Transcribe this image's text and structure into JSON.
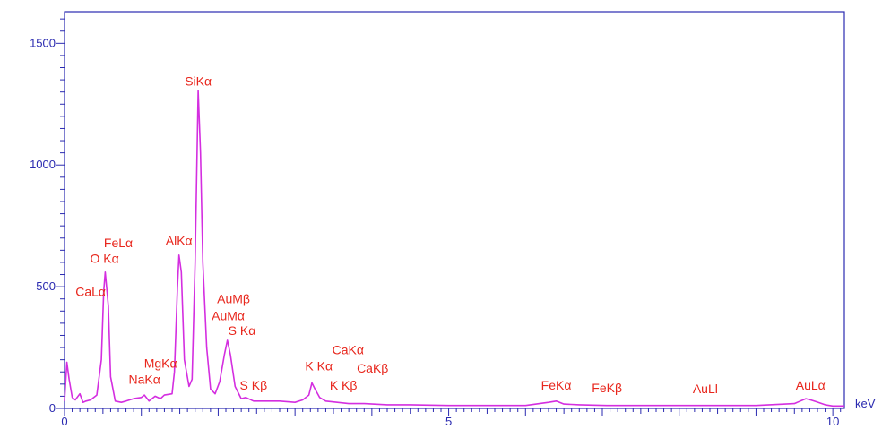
{
  "chart_data": {
    "type": "line",
    "title": "",
    "xlabel": "",
    "ylabel": "",
    "x_unit": "keV",
    "xlim": [
      0,
      10.15
    ],
    "ylim": [
      0,
      1630
    ],
    "x_ticks": [
      0,
      5,
      10
    ],
    "y_ticks": [
      0,
      500,
      1000,
      1500
    ],
    "grid": false,
    "legend": "none",
    "colors": {
      "spectrum": "#d42ee0",
      "axis": "#2a2ab0",
      "labels": "#e8261c",
      "background": "#ffffff"
    },
    "series": [
      {
        "x": [
          0.0,
          0.03,
          0.06,
          0.1,
          0.14,
          0.2,
          0.24,
          0.28,
          0.34,
          0.42,
          0.48,
          0.51,
          0.53,
          0.57,
          0.6,
          0.66,
          0.74,
          0.8,
          0.9,
          1.0,
          1.04,
          1.1,
          1.18,
          1.25,
          1.3,
          1.4,
          1.43,
          1.47,
          1.49,
          1.52,
          1.56,
          1.62,
          1.66,
          1.7,
          1.74,
          1.77,
          1.8,
          1.85,
          1.9,
          1.96,
          2.02,
          2.08,
          2.12,
          2.16,
          2.22,
          2.3,
          2.36,
          2.46,
          2.6,
          2.8,
          3.0,
          3.1,
          3.18,
          3.22,
          3.26,
          3.32,
          3.4,
          3.55,
          3.7,
          3.9,
          4.2,
          4.5,
          5.0,
          5.5,
          6.0,
          6.3,
          6.4,
          6.5,
          6.7,
          7.06,
          7.5,
          8.0,
          8.5,
          9.0,
          9.5,
          9.65,
          9.71,
          9.78,
          9.9,
          10.0,
          10.15
        ],
        "y": [
          30,
          190,
          120,
          45,
          35,
          60,
          25,
          30,
          35,
          55,
          200,
          480,
          560,
          420,
          130,
          30,
          25,
          30,
          40,
          45,
          55,
          30,
          50,
          40,
          55,
          60,
          150,
          500,
          630,
          560,
          200,
          90,
          120,
          600,
          1305,
          1050,
          600,
          250,
          80,
          60,
          110,
          220,
          280,
          220,
          90,
          40,
          45,
          30,
          30,
          30,
          25,
          35,
          55,
          105,
          80,
          45,
          30,
          25,
          20,
          20,
          15,
          15,
          12,
          12,
          12,
          25,
          30,
          18,
          15,
          12,
          12,
          12,
          12,
          12,
          20,
          40,
          35,
          28,
          15,
          10,
          10
        ]
      }
    ],
    "peak_labels": [
      {
        "text": "SiKα",
        "x": 1.74,
        "y": 1305
      },
      {
        "text": "FeLα",
        "x": 0.7,
        "y": 640
      },
      {
        "text": "O Kα",
        "x": 0.52,
        "y": 575
      },
      {
        "text": "CaLα",
        "x": 0.34,
        "y": 440
      },
      {
        "text": "AlKα",
        "x": 1.49,
        "y": 650
      },
      {
        "text": "AuMβ",
        "x": 2.2,
        "y": 410
      },
      {
        "text": "AuMα",
        "x": 2.13,
        "y": 340
      },
      {
        "text": "S Kα",
        "x": 2.31,
        "y": 280
      },
      {
        "text": "MgKα",
        "x": 1.25,
        "y": 145
      },
      {
        "text": "NaKα",
        "x": 1.04,
        "y": 80
      },
      {
        "text": "S Kβ",
        "x": 2.46,
        "y": 55
      },
      {
        "text": "CaKα",
        "x": 3.69,
        "y": 200
      },
      {
        "text": "K Kα",
        "x": 3.31,
        "y": 135
      },
      {
        "text": "CaKβ",
        "x": 4.01,
        "y": 125
      },
      {
        "text": "K Kβ",
        "x": 3.63,
        "y": 55
      },
      {
        "text": "FeKα",
        "x": 6.4,
        "y": 55
      },
      {
        "text": "FeKβ",
        "x": 7.06,
        "y": 45
      },
      {
        "text": "AuLl",
        "x": 8.34,
        "y": 40
      },
      {
        "text": "AuLα",
        "x": 9.71,
        "y": 55
      }
    ]
  }
}
